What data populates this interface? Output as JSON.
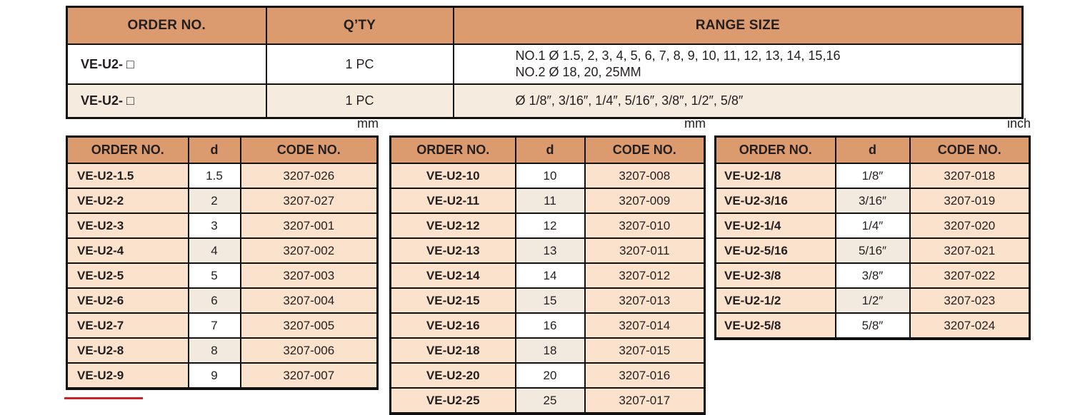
{
  "colors": {
    "header_orange": "#dc9a6f",
    "cell_peach": "#fbe2cc",
    "cell_beige": "#f2eadf",
    "row_light": "#f5ebde",
    "accent_red": "#c9242b",
    "border_black": "#111111"
  },
  "top_table": {
    "headers": [
      "ORDER NO.",
      "Q’TY",
      "RANGE SIZE"
    ],
    "rows": [
      {
        "order_no": "VE-U2- □",
        "qty": "1 PC",
        "range_lines": [
          "NO.1 Ø 1.5, 2, 3, 4, 5, 6, 7, 8, 9, 10, 11, 12, 13, 14, 15,16",
          "NO.2 Ø 18, 20, 25MM"
        ]
      },
      {
        "order_no": "VE-U2- □",
        "qty": "1 PC",
        "range_lines": [
          "Ø 1/8″, 3/16″, 1/4″, 5/16″, 3/8″, 1/2″, 5/8″"
        ]
      }
    ]
  },
  "sub_tables": [
    {
      "unit": "mm",
      "headers": [
        "ORDER NO.",
        "d",
        "CODE NO."
      ],
      "rows": [
        [
          "VE-U2-1.5",
          "1.5",
          "3207-026"
        ],
        [
          "VE-U2-2",
          "2",
          "3207-027"
        ],
        [
          "VE-U2-3",
          "3",
          "3207-001"
        ],
        [
          "VE-U2-4",
          "4",
          "3207-002"
        ],
        [
          "VE-U2-5",
          "5",
          "3207-003"
        ],
        [
          "VE-U2-6",
          "6",
          "3207-004"
        ],
        [
          "VE-U2-7",
          "7",
          "3207-005"
        ],
        [
          "VE-U2-8",
          "8",
          "3207-006"
        ],
        [
          "VE-U2-9",
          "9",
          "3207-007"
        ]
      ]
    },
    {
      "unit": "mm",
      "headers": [
        "ORDER NO.",
        "d",
        "CODE NO."
      ],
      "rows": [
        [
          "VE-U2-10",
          "10",
          "3207-008"
        ],
        [
          "VE-U2-11",
          "11",
          "3207-009"
        ],
        [
          "VE-U2-12",
          "12",
          "3207-010"
        ],
        [
          "VE-U2-13",
          "13",
          "3207-011"
        ],
        [
          "VE-U2-14",
          "14",
          "3207-012"
        ],
        [
          "VE-U2-15",
          "15",
          "3207-013"
        ],
        [
          "VE-U2-16",
          "16",
          "3207-014"
        ],
        [
          "VE-U2-18",
          "18",
          "3207-015"
        ],
        [
          "VE-U2-20",
          "20",
          "3207-016"
        ],
        [
          "VE-U2-25",
          "25",
          "3207-017"
        ]
      ]
    },
    {
      "unit": "inch",
      "headers": [
        "ORDER NO.",
        "d",
        "CODE NO."
      ],
      "rows": [
        [
          "VE-U2-1/8",
          "1/8″",
          "3207-018"
        ],
        [
          "VE-U2-3/16",
          "3/16″",
          "3207-019"
        ],
        [
          "VE-U2-1/4",
          "1/4″",
          "3207-020"
        ],
        [
          "VE-U2-5/16",
          "5/16″",
          "3207-021"
        ],
        [
          "VE-U2-3/8",
          "3/8″",
          "3207-022"
        ],
        [
          "VE-U2-1/2",
          "1/2″",
          "3207-023"
        ],
        [
          "VE-U2-5/8",
          "5/8″",
          "3207-024"
        ]
      ]
    }
  ]
}
